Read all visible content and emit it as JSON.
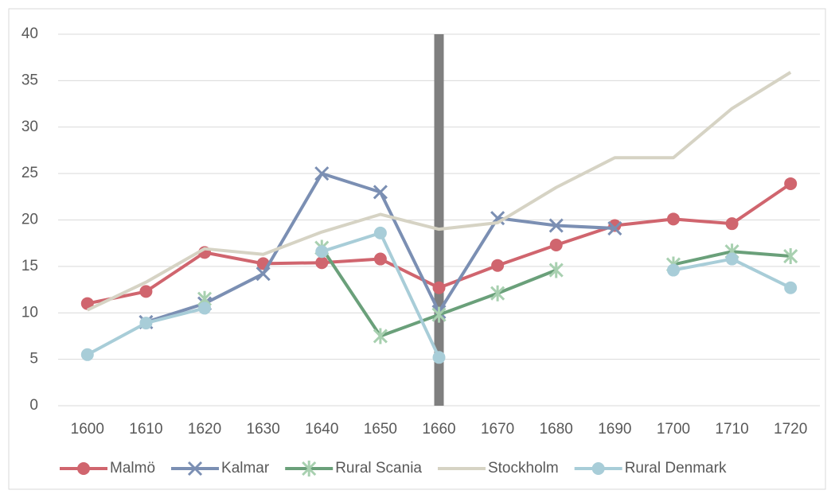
{
  "chart_data": {
    "type": "line",
    "categories": [
      "1600",
      "1610",
      "1620",
      "1630",
      "1640",
      "1650",
      "1660",
      "1670",
      "1680",
      "1690",
      "1700",
      "1710",
      "1720"
    ],
    "ylim": [
      0,
      40
    ],
    "yticks": [
      0,
      5,
      10,
      15,
      20,
      25,
      30,
      35,
      40
    ],
    "grid": true,
    "legend": "bottom",
    "highlight_category": "1660",
    "highlight_color": "#7f7f7f",
    "series": [
      {
        "name": "Malmö",
        "color": "#d0656e",
        "marker": "circle",
        "values": [
          11.0,
          12.3,
          16.5,
          15.3,
          15.4,
          15.8,
          12.7,
          15.1,
          17.3,
          19.4,
          20.1,
          19.6,
          23.9
        ]
      },
      {
        "name": "Kalmar",
        "color": "#7b8fb3",
        "marker": "x",
        "values": [
          null,
          9.0,
          11.0,
          14.2,
          25.0,
          23.0,
          10.1,
          20.2,
          19.4,
          19.1,
          null,
          null,
          null
        ]
      },
      {
        "name": "Rural Scania",
        "color": "#6aa07a",
        "marker": "star",
        "marker_color": "#a8d0b0",
        "values": [
          null,
          null,
          11.5,
          null,
          17.0,
          7.5,
          9.8,
          12.1,
          14.6,
          null,
          15.2,
          16.6,
          16.1
        ]
      },
      {
        "name": "Stockholm",
        "color": "#d6d3c4",
        "marker": "none",
        "values": [
          10.3,
          13.3,
          16.9,
          16.3,
          18.7,
          20.6,
          19.0,
          19.7,
          23.5,
          26.7,
          26.7,
          32.0,
          35.9
        ]
      },
      {
        "name": "Rural Denmark",
        "color": "#a8cdd8",
        "marker": "circle",
        "values": [
          5.5,
          8.9,
          10.5,
          null,
          16.6,
          18.6,
          5.2,
          null,
          null,
          null,
          14.6,
          15.8,
          12.7
        ]
      }
    ]
  }
}
